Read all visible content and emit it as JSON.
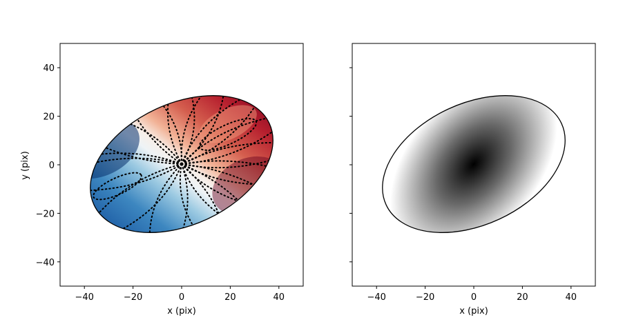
{
  "chart_data": [
    {
      "type": "heatmap",
      "panel": "left",
      "title": "",
      "xlabel": "x (pix)",
      "ylabel": "y (pix)",
      "xlim": [
        -50,
        50
      ],
      "ylim": [
        -50,
        50
      ],
      "xticks": [
        "−40",
        "−20",
        "0",
        "20",
        "40"
      ],
      "yticks": [
        "−40",
        "−20",
        "0",
        "20",
        "40"
      ],
      "colormap": "RdBu_r",
      "ellipse": {
        "semi_major": 40,
        "semi_minor": 25,
        "position_angle_deg": 25
      },
      "contours": "dotted black",
      "grid": false
    },
    {
      "type": "heatmap",
      "panel": "right",
      "title": "",
      "xlabel": "x (pix)",
      "ylabel": "",
      "xlim": [
        -50,
        50
      ],
      "ylim": [
        -50,
        50
      ],
      "xticks": [
        "−40",
        "−20",
        "0",
        "20",
        "40"
      ],
      "yticks": [],
      "colormap": "Greys",
      "ellipse": {
        "semi_major": 40,
        "semi_minor": 25,
        "position_angle_deg": 25
      },
      "peak_at": [
        0,
        0
      ],
      "grid": false
    }
  ],
  "colors": {
    "frame": "#000000",
    "cool": "#053061",
    "warm": "#67001f",
    "mid": "#f7f7f7"
  }
}
